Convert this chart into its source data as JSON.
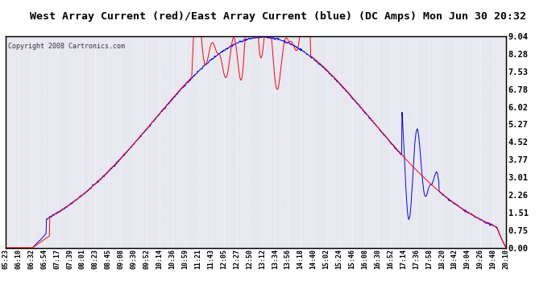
{
  "title": "West Array Current (red)/East Array Current (blue) (DC Amps) Mon Jun 30 20:32",
  "copyright": "Copyright 2008 Cartronics.com",
  "title_fontsize": 13,
  "title_bg": "#ffffff",
  "plot_bg": "#ffffff",
  "grid_bg": "#e8e8f0",
  "ylabel_right": [
    "9.04",
    "8.28",
    "7.53",
    "6.78",
    "6.02",
    "5.27",
    "4.52",
    "3.77",
    "3.01",
    "2.26",
    "1.51",
    "0.75",
    "0.00"
  ],
  "yticks": [
    9.04,
    8.28,
    7.53,
    6.78,
    6.02,
    5.27,
    4.52,
    3.77,
    3.01,
    2.26,
    1.51,
    0.75,
    0.0
  ],
  "ylim": [
    0.0,
    9.04
  ],
  "xtick_labels": [
    "05:23",
    "06:10",
    "06:32",
    "06:54",
    "07:17",
    "07:39",
    "08:01",
    "08:23",
    "08:45",
    "09:08",
    "09:30",
    "09:52",
    "10:14",
    "10:36",
    "10:59",
    "11:21",
    "11:43",
    "12:05",
    "12:27",
    "12:50",
    "13:12",
    "13:34",
    "13:56",
    "14:18",
    "14:40",
    "15:02",
    "15:24",
    "15:46",
    "16:08",
    "16:30",
    "16:52",
    "17:14",
    "17:36",
    "17:58",
    "18:20",
    "18:42",
    "19:04",
    "19:26",
    "19:48",
    "20:10"
  ],
  "red_color": "#ff0000",
  "blue_color": "#0000ff",
  "border_color": "#000000"
}
